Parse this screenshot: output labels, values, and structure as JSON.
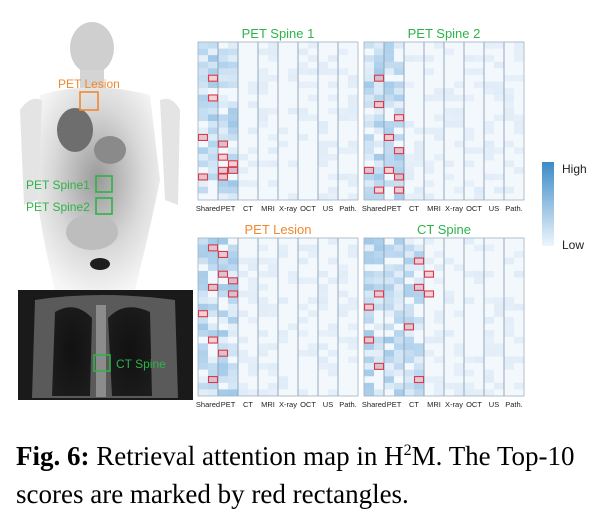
{
  "images": {
    "pet": {
      "labels": [
        "PET Lesion",
        "PET Spine1",
        "PET Spine2"
      ],
      "colors": [
        "#f0892f",
        "#2db34a",
        "#2db34a"
      ]
    },
    "ct": {
      "labels": [
        "CT Spine"
      ],
      "colors": [
        "#2db34a"
      ]
    }
  },
  "columns": [
    "Shared",
    "PET",
    "CT",
    "MRI",
    "X-ray",
    "OCT",
    "US",
    "Path."
  ],
  "panels": [
    {
      "title": "PET Spine 1",
      "title_color": "#2db34a",
      "marks": [
        [
          1,
          5
        ],
        [
          1,
          8
        ],
        [
          0,
          14
        ],
        [
          2,
          15
        ],
        [
          2,
          17
        ],
        [
          3,
          18
        ],
        [
          2,
          19
        ],
        [
          3,
          19
        ],
        [
          0,
          20
        ],
        [
          2,
          20
        ]
      ]
    },
    {
      "title": "PET Spine 2",
      "title_color": "#2db34a",
      "marks": [
        [
          1,
          5
        ],
        [
          1,
          9
        ],
        [
          3,
          11
        ],
        [
          2,
          14
        ],
        [
          3,
          16
        ],
        [
          0,
          19
        ],
        [
          2,
          19
        ],
        [
          3,
          20
        ],
        [
          1,
          22
        ],
        [
          3,
          22
        ]
      ]
    },
    {
      "title": "PET Lesion",
      "title_color": "#f0892f",
      "marks": [
        [
          1,
          1
        ],
        [
          2,
          2
        ],
        [
          2,
          5
        ],
        [
          3,
          6
        ],
        [
          1,
          7
        ],
        [
          3,
          8
        ],
        [
          0,
          11
        ],
        [
          1,
          15
        ],
        [
          2,
          17
        ],
        [
          1,
          21
        ]
      ]
    },
    {
      "title": "CT Spine",
      "title_color": "#2db34a",
      "marks": [
        [
          5,
          3
        ],
        [
          6,
          5
        ],
        [
          5,
          7
        ],
        [
          1,
          8
        ],
        [
          6,
          8
        ],
        [
          0,
          10
        ],
        [
          4,
          13
        ],
        [
          0,
          15
        ],
        [
          1,
          19
        ],
        [
          5,
          21
        ]
      ]
    }
  ],
  "legend": {
    "high": "High",
    "low": "Low"
  },
  "caption": {
    "label": "Fig. 6:",
    "text_before": " Retrieval attention map in H",
    "sup": "2",
    "text_after": "M. The Top-10 scores are marked by red rectangles."
  }
}
